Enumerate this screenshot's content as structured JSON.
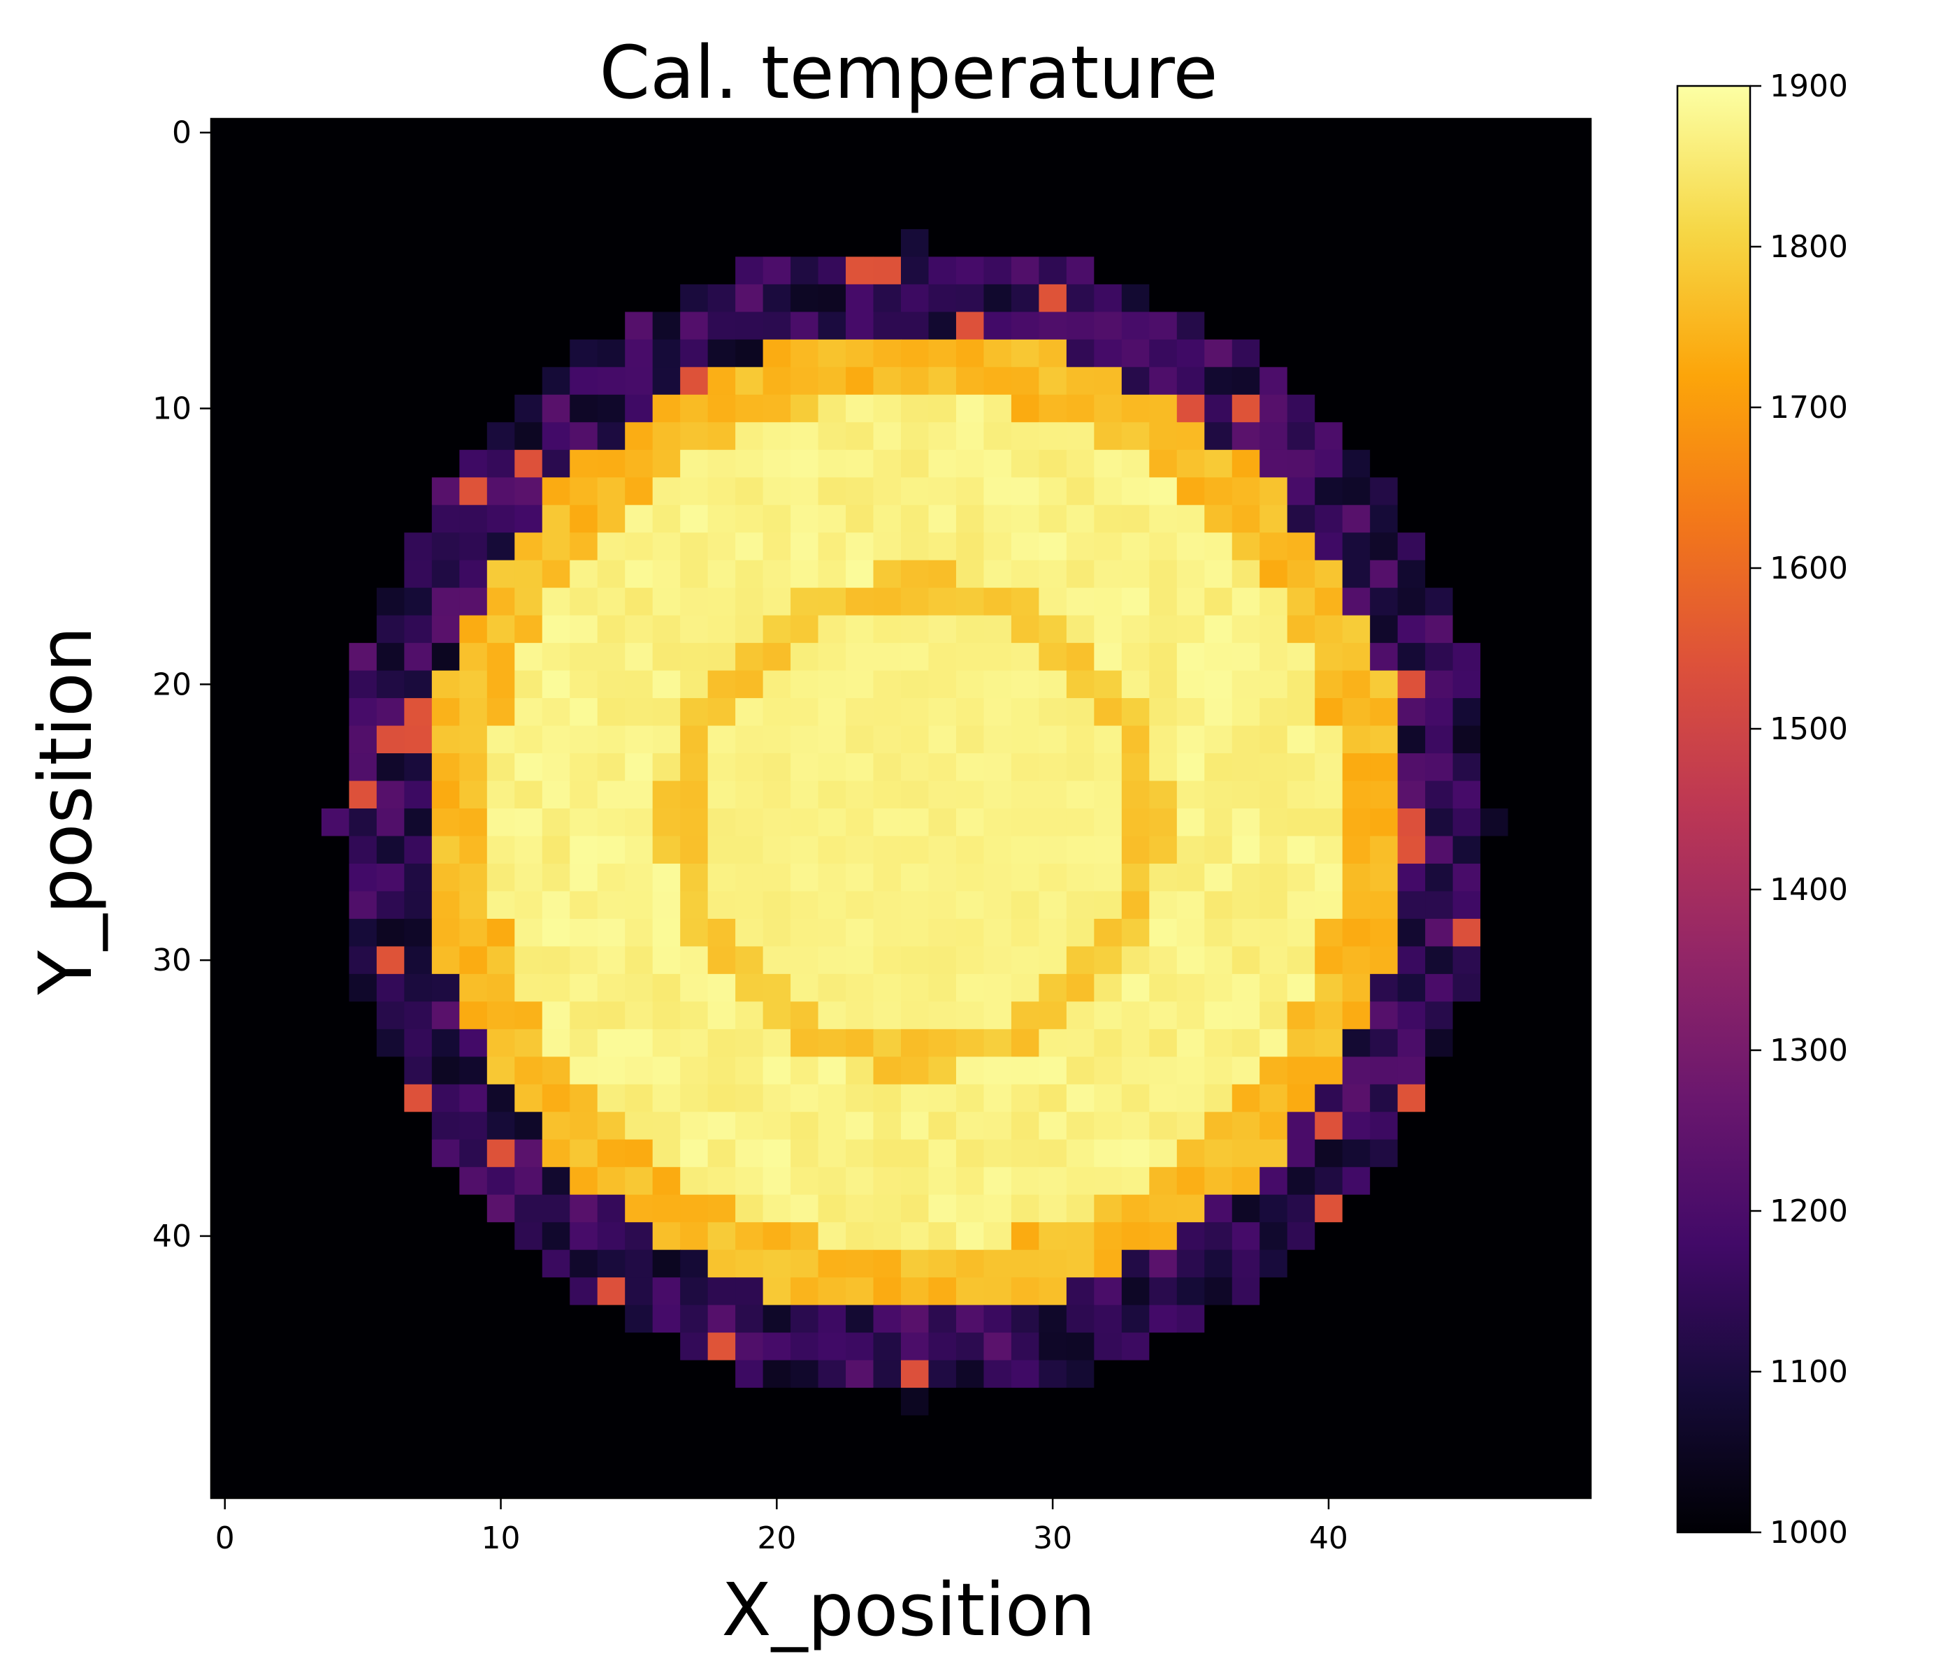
{
  "chart_data": {
    "type": "heatmap",
    "title": "Cal. temperature",
    "xlabel": "X_position",
    "ylabel": "Y_position",
    "grid": false,
    "x_range": [
      0,
      49
    ],
    "y_range": [
      0,
      49
    ],
    "y_axis_inverted": true,
    "x_ticks": [
      "0",
      "10",
      "20",
      "30",
      "40"
    ],
    "y_ticks": [
      "0",
      "10",
      "20",
      "30",
      "40"
    ],
    "colormap": "inferno",
    "colorbar": {
      "min": 1000,
      "max": 1900,
      "ticks": [
        "1000",
        "1100",
        "1200",
        "1300",
        "1400",
        "1500",
        "1600",
        "1700",
        "1800",
        "1900"
      ],
      "placement": "right"
    },
    "description_model": {
      "grid_size": 50,
      "center": [
        25,
        25
      ],
      "background": 1000,
      "outer_disk_radius": 21,
      "hot_disk_radius": 15.5,
      "inner_ring_radius": 8.5,
      "inner_ring_value": 1760,
      "core_value": 1880,
      "hot_region_value": 1890,
      "edge_band_values": [
        1050,
        1250
      ],
      "hot_edge_value": 1730
    }
  }
}
